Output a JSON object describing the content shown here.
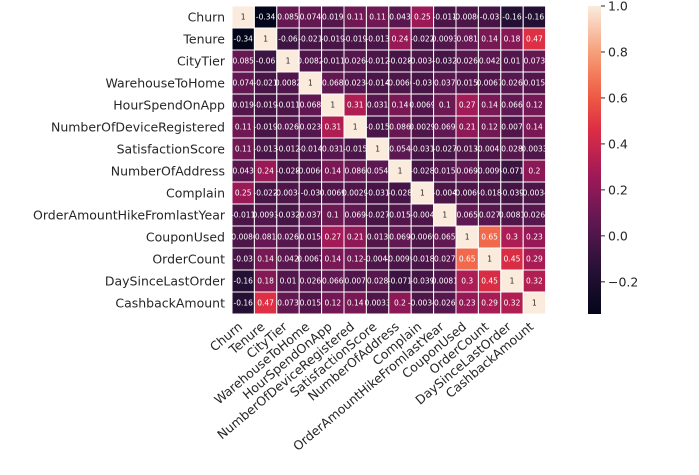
{
  "chart_data": {
    "type": "heatmap",
    "title": "",
    "xlabel": "",
    "ylabel": "",
    "variables": [
      "Churn",
      "Tenure",
      "CityTier",
      "WarehouseToHome",
      "HourSpendOnApp",
      "NumberOfDeviceRegistered",
      "SatisfactionScore",
      "NumberOfAddress",
      "Complain",
      "OrderAmountHikeFromlastYear",
      "CouponUsed",
      "OrderCount",
      "DaySinceLastOrder",
      "CashbackAmount"
    ],
    "cell_labels": [
      [
        "1",
        "-0.34",
        "0.085",
        "0.074",
        "0.019",
        "0.11",
        "0.11",
        "0.043",
        "0.25",
        "-0.011",
        "-0.0086",
        "-0.03",
        "-0.16",
        "-0.16"
      ],
      [
        "-0.34",
        "1",
        "-0.06",
        "-0.021",
        "-0.019",
        "-0.019",
        "-0.013",
        "0.24",
        "-0.022",
        "0.0093",
        "0.081",
        "0.14",
        "0.18",
        "0.47"
      ],
      [
        "0.085",
        "-0.06",
        "1",
        "0.0082",
        "-0.011",
        "0.026",
        "-0.012",
        "-0.028",
        "-0.0034",
        "-0.032",
        "0.026",
        "0.042",
        "0.01",
        "0.073"
      ],
      [
        "0.074",
        "-0.021",
        "0.0082",
        "1",
        "0.068",
        "0.023",
        "-0.014",
        "-0.0066",
        "-0.03",
        "0.037",
        "0.015",
        "0.0067",
        "0.026",
        "0.015"
      ],
      [
        "0.019",
        "-0.019",
        "-0.011",
        "0.068",
        "1",
        "0.31",
        "0.031",
        "0.14",
        "0.0069",
        "0.1",
        "0.27",
        "0.14",
        "0.066",
        "0.12"
      ],
      [
        "0.11",
        "-0.019",
        "0.026",
        "0.023",
        "0.31",
        "1",
        "-0.015",
        "0.086",
        "0.0029",
        "0.069",
        "0.21",
        "0.12",
        "0.007",
        "0.14"
      ],
      [
        "0.11",
        "-0.013",
        "-0.012",
        "-0.014",
        "0.031",
        "-0.015",
        "1",
        "0.054",
        "-0.031",
        "-0.027",
        "0.013",
        "-0.0043",
        "0.028",
        "0.0033"
      ],
      [
        "0.043",
        "0.24",
        "-0.028",
        "-0.0066",
        "0.14",
        "0.086",
        "0.054",
        "1",
        "-0.028",
        "0.015",
        "0.069",
        "-0.0099",
        "-0.071",
        "0.2"
      ],
      [
        "0.25",
        "-0.022",
        "-0.0034",
        "-0.03",
        "0.0069",
        "0.0029",
        "-0.031",
        "-0.028",
        "1",
        "-0.004",
        "-0.0069",
        "-0.018",
        "-0.039",
        "-0.0034"
      ],
      [
        "-0.011",
        "0.0093",
        "-0.032",
        "0.037",
        "0.1",
        "0.069",
        "-0.027",
        "0.015",
        "-0.004",
        "1",
        "0.065",
        "0.027",
        "0.0081",
        "0.026"
      ],
      [
        "-0.0086",
        "0.081",
        "0.026",
        "0.015",
        "0.27",
        "0.21",
        "0.013",
        "0.069",
        "-0.0069",
        "0.065",
        "1",
        "0.65",
        "0.3",
        "0.23"
      ],
      [
        "-0.03",
        "0.14",
        "0.042",
        "0.0067",
        "0.14",
        "0.12",
        "-0.0043",
        "-0.0099",
        "-0.018",
        "0.027",
        "0.65",
        "1",
        "0.45",
        "0.29"
      ],
      [
        "-0.16",
        "0.18",
        "0.01",
        "0.026",
        "0.066",
        "0.007",
        "0.028",
        "-0.071",
        "-0.039",
        "0.0081",
        "0.3",
        "0.45",
        "1",
        "0.32"
      ],
      [
        "-0.16",
        "0.47",
        "0.073",
        "0.015",
        "0.12",
        "0.14",
        "0.0033",
        "0.2",
        "-0.0034",
        "0.026",
        "0.23",
        "0.29",
        "0.32",
        "1"
      ]
    ],
    "vmin": -0.34,
    "vmax": 1.0,
    "colorbar_ticks": [
      "1.0",
      "0.8",
      "0.6",
      "0.4",
      "0.2",
      "0.0",
      "−0.2"
    ],
    "colorbar_tick_values": [
      1.0,
      0.8,
      0.6,
      0.4,
      0.2,
      0.0,
      -0.2
    ],
    "colormap": "rocket",
    "cell_border_color": "#ffffff",
    "legend": "colorbar-right"
  }
}
